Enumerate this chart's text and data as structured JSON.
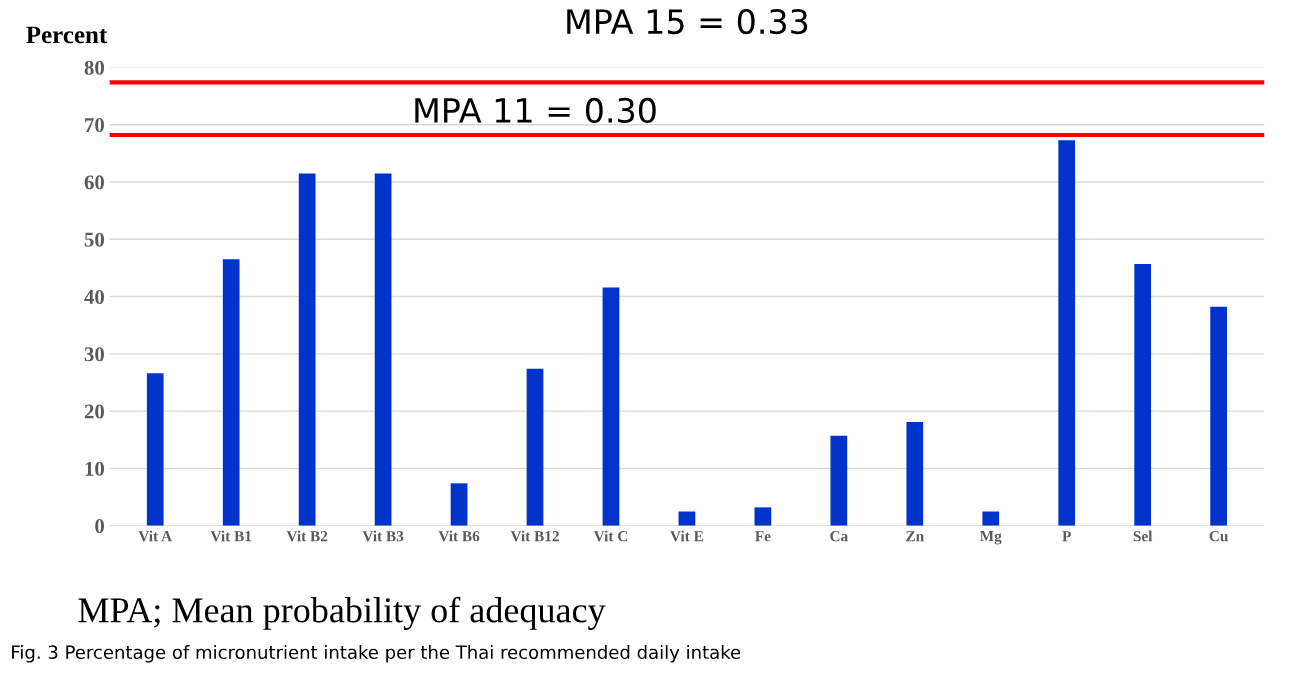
{
  "chart_data": {
    "type": "bar",
    "ylabel": "Percent",
    "categories": [
      "Vit A",
      "Vit B1",
      "Vit B2",
      "Vit B3",
      "Vit B6",
      "Vit B12",
      "Vit C",
      "Vit E",
      "Fe",
      "Ca",
      "Zn",
      "Mg",
      "P",
      "Sel",
      "Cu"
    ],
    "values": [
      26.6,
      46.5,
      61.5,
      61.5,
      7.4,
      27.4,
      41.6,
      2.5,
      3.2,
      15.7,
      18.1,
      2.5,
      67.3,
      45.7,
      38.2
    ],
    "color": "#0033cc",
    "ylim": [
      0,
      80
    ],
    "yticks": [
      0,
      10,
      20,
      30,
      40,
      50,
      60,
      70,
      80
    ],
    "grid": "y",
    "ref_lines": [
      {
        "axis": "y",
        "value": 77.4,
        "color": "#ff0000"
      },
      {
        "axis": "y",
        "value": 68.2,
        "color": "#ff0000"
      }
    ],
    "annotations": [
      {
        "text": "MPA 15 = 0.33",
        "x": "Vit E",
        "y": 77.4
      },
      {
        "text": "MPA 11 = 0.30",
        "x": "Vit B12",
        "y": 68.2
      },
      "MPA; Mean probability of adequacy",
      "Fig. 3 Percentage of micronutrient intake per the Thai recommended daily intake"
    ]
  }
}
